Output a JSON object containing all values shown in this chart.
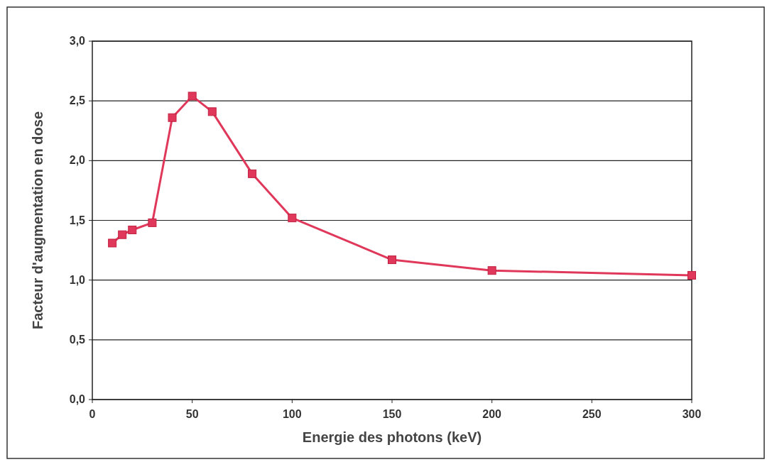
{
  "chart_data": {
    "type": "line",
    "xlabel": "Energie des photons (keV)",
    "ylabel": "Facteur d'augmentation en dose",
    "x": [
      10,
      15,
      20,
      30,
      40,
      50,
      60,
      80,
      100,
      150,
      200,
      300
    ],
    "series": [
      {
        "color": "#e0385a",
        "values": [
          1.31,
          1.38,
          1.42,
          1.48,
          2.36,
          2.54,
          2.41,
          1.89,
          1.52,
          1.17,
          1.08,
          1.04
        ]
      }
    ],
    "xlim": [
      0,
      300
    ],
    "xticks": [
      0,
      50,
      100,
      150,
      200,
      250,
      300
    ],
    "ylim": [
      0,
      3
    ],
    "yticks": [
      {
        "value": 0,
        "label": "0,0"
      },
      {
        "value": 0.5,
        "label": "0,5"
      },
      {
        "value": 1,
        "label": "1,0"
      },
      {
        "value": 1.5,
        "label": "1,5"
      },
      {
        "value": 2,
        "label": "2,0"
      },
      {
        "value": 2.5,
        "label": "2,5"
      },
      {
        "value": 3,
        "label": "3,0"
      }
    ],
    "grid": "y",
    "marker": "square",
    "line_style": "solid"
  }
}
